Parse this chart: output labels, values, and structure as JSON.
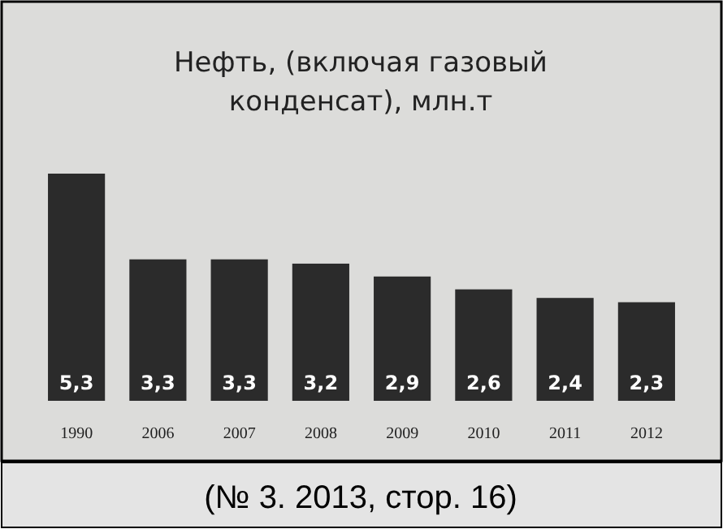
{
  "chart_data": {
    "type": "bar",
    "title": "Нефть, (включая газовый конденсат), млн.т",
    "categories": [
      "1990",
      "2006",
      "2007",
      "2008",
      "2009",
      "2010",
      "2011",
      "2012"
    ],
    "values": [
      5.3,
      3.3,
      3.3,
      3.2,
      2.9,
      2.6,
      2.4,
      2.3
    ],
    "value_labels": [
      "5,3",
      "3,3",
      "3,3",
      "3,2",
      "2,9",
      "2,6",
      "2,4",
      "2,3"
    ],
    "color": "#2b2b2b",
    "annotations": [
      "(№ 3. 2013, стор. 16)"
    ]
  }
}
